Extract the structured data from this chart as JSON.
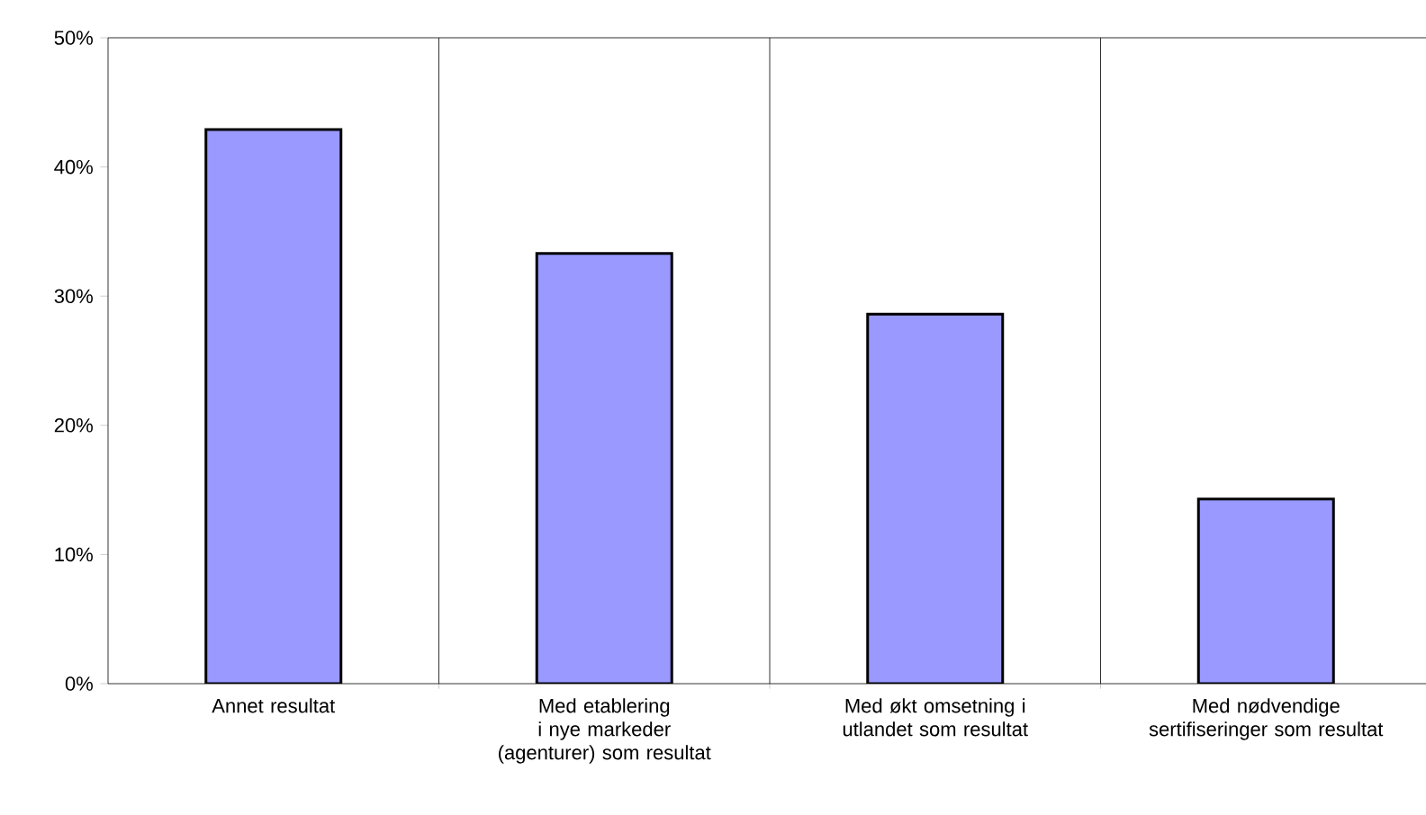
{
  "chart_data": {
    "type": "bar",
    "categories": [
      "Annet resultat",
      "Med etablering i nye markeder (agenturer) som resultat",
      "Med økt omsetning i utlandet som resultat",
      "Med nødvendige sertifiseringer som resultat"
    ],
    "values": [
      42.9,
      33.3,
      28.6,
      14.3
    ],
    "color": "#9999ff",
    "ylim": [
      0,
      50
    ],
    "yticks": [
      {
        "value": 0,
        "label": "0%"
      },
      {
        "value": 10,
        "label": "10%"
      },
      {
        "value": 20,
        "label": "20%"
      },
      {
        "value": 30,
        "label": "30%"
      },
      {
        "value": 40,
        "label": "40%"
      },
      {
        "value": 50,
        "label": "50%"
      }
    ],
    "grid": "x"
  }
}
